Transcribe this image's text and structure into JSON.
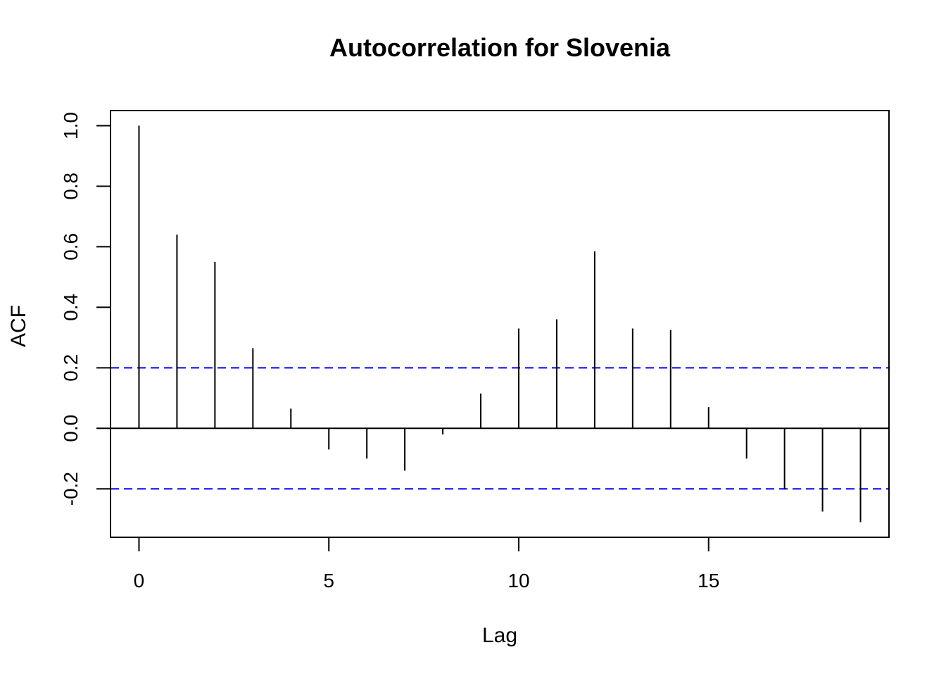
{
  "chart_data": {
    "type": "bar",
    "title": "Autocorrelation for Slovenia",
    "xlabel": "Lag",
    "ylabel": "ACF",
    "xlim": [
      -0.75,
      19.75
    ],
    "ylim": [
      -0.36,
      1.05
    ],
    "x_ticks": [
      0,
      5,
      10,
      15
    ],
    "x_tick_labels": [
      "0",
      "5",
      "10",
      "15"
    ],
    "y_ticks": [
      -0.2,
      0.0,
      0.2,
      0.4,
      0.6,
      0.8,
      1.0
    ],
    "y_tick_labels": [
      "-0.2",
      "0.0",
      "0.2",
      "0.4",
      "0.6",
      "0.8",
      "1.0"
    ],
    "lags": [
      0,
      1,
      2,
      3,
      4,
      5,
      6,
      7,
      8,
      9,
      10,
      11,
      12,
      13,
      14,
      15,
      16,
      17,
      18,
      19
    ],
    "acf": [
      1.0,
      0.64,
      0.55,
      0.265,
      0.065,
      -0.07,
      -0.1,
      -0.14,
      -0.02,
      0.115,
      0.33,
      0.36,
      0.585,
      0.33,
      0.325,
      0.07,
      -0.1,
      -0.2,
      -0.275,
      -0.31
    ],
    "confidence_bounds": [
      0.2,
      -0.2
    ],
    "ci_color": "#0000ff",
    "grid": false,
    "legend": false
  }
}
